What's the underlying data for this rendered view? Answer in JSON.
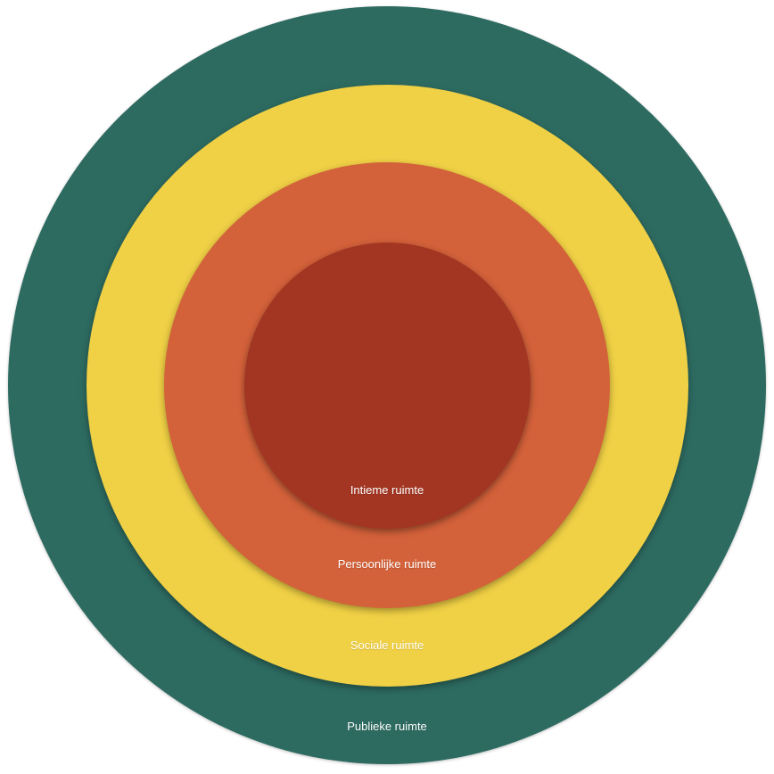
{
  "zones": [
    {
      "id": "public",
      "label": "Publieke ruimte",
      "color": "#2d6b61"
    },
    {
      "id": "social",
      "label": "Sociale ruimte",
      "color": "#f0d045"
    },
    {
      "id": "personal",
      "label": "Persoonlijke ruimte",
      "color": "#d3613a"
    },
    {
      "id": "intimate",
      "label": "Intieme ruimte",
      "color": "#a33623"
    }
  ]
}
